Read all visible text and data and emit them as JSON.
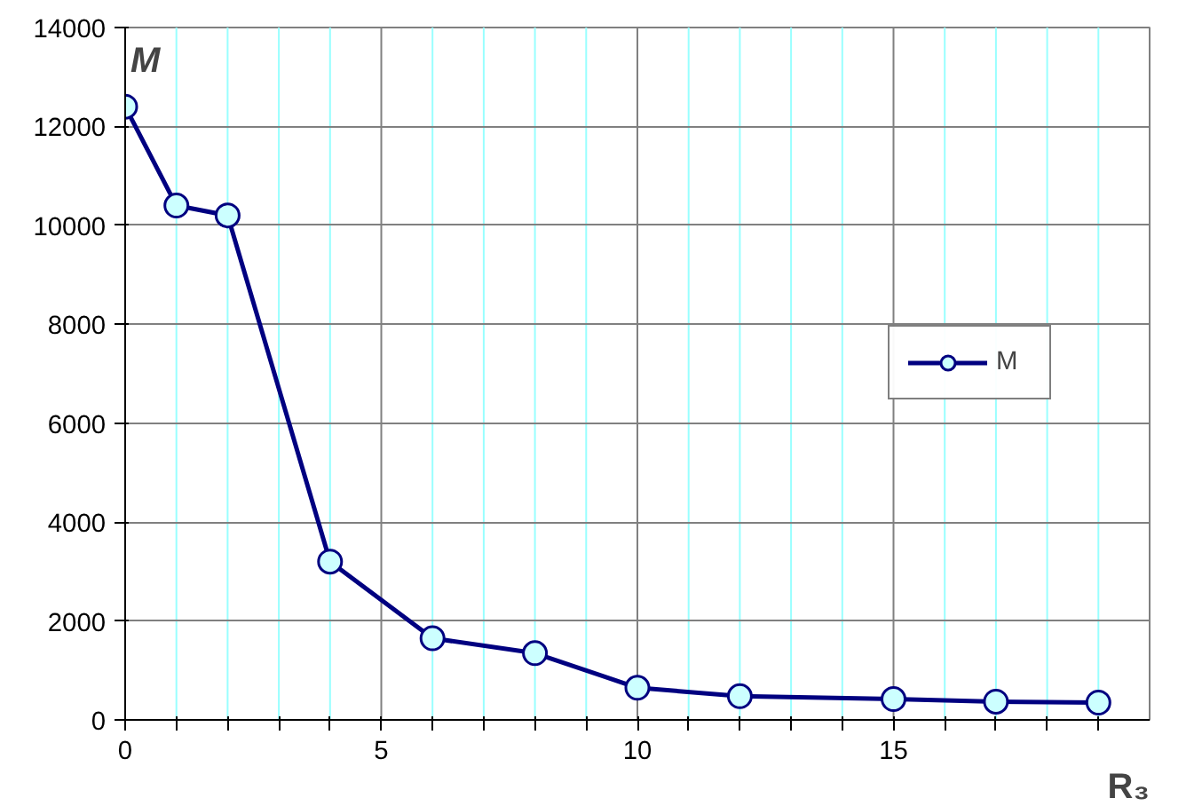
{
  "chart_data": {
    "type": "line",
    "xlabel": "R₃",
    "ylabel": "M",
    "x": [
      0,
      1,
      2,
      4,
      6,
      8,
      10,
      12,
      15,
      17,
      19
    ],
    "series": [
      {
        "name": "M",
        "color": "#000080",
        "values": [
          12400,
          10400,
          10200,
          3200,
          1650,
          1350,
          650,
          480,
          420,
          370,
          350
        ]
      }
    ],
    "xlim": [
      0,
      20
    ],
    "ylim": [
      0,
      14000
    ],
    "xticks": [
      0,
      {
        "value": 1,
        "label": null
      },
      {
        "value": 2,
        "label": null
      },
      {
        "value": 3,
        "label": null
      },
      {
        "value": 4,
        "label": null
      },
      5,
      {
        "value": 6,
        "label": null
      },
      {
        "value": 7,
        "label": null
      },
      {
        "value": 8,
        "label": null
      },
      {
        "value": 9,
        "label": null
      },
      10,
      {
        "value": 11,
        "label": null
      },
      {
        "value": 12,
        "label": null
      },
      {
        "value": 13,
        "label": null
      },
      {
        "value": 14,
        "label": null
      },
      15,
      {
        "value": 16,
        "label": null
      },
      {
        "value": 17,
        "label": null
      },
      {
        "value": 18,
        "label": null
      },
      {
        "value": 19,
        "label": null
      }
    ],
    "yticks": [
      0,
      2000,
      4000,
      6000,
      8000,
      10000,
      12000,
      14000
    ],
    "grid": true,
    "legend": "right",
    "marker": "circle",
    "line_style": "solid"
  }
}
